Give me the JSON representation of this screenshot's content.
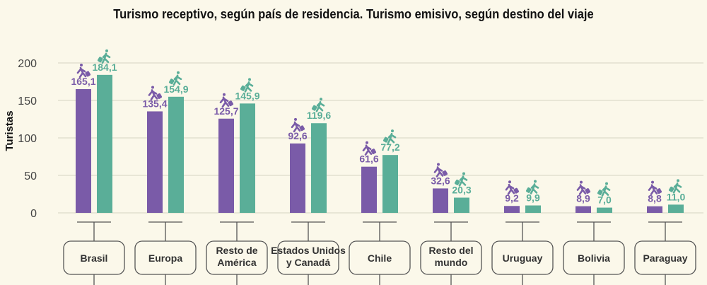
{
  "chart_data": {
    "type": "bar",
    "title": "Turismo receptivo, según país de residencia. Turismo emisivo, según destino del viaje",
    "xlabel": "",
    "ylabel": "Turistas",
    "ylim": [
      0,
      200
    ],
    "yticks": [
      "0",
      "50",
      "100",
      "150",
      "200"
    ],
    "grid": true,
    "categories": [
      "Brasil",
      "Europa",
      "Resto de América",
      "Estados Unidos y Canadá",
      "Chile",
      "Resto del mundo",
      "Uruguay",
      "Bolivia",
      "Paraguay"
    ],
    "category_lines": [
      [
        "Brasil"
      ],
      [
        "Europa"
      ],
      [
        "Resto de",
        "América"
      ],
      [
        "Estados Unidos",
        "y Canadá"
      ],
      [
        "Chile"
      ],
      [
        "Resto del",
        "mundo"
      ],
      [
        "Uruguay"
      ],
      [
        "Bolivia"
      ],
      [
        "Paraguay"
      ]
    ],
    "series": [
      {
        "icon": "arriving-traveler-icon",
        "color": "#7a5ba8",
        "values": [
          165.1,
          135.4,
          125.7,
          92.6,
          61.6,
          32.6,
          9.2,
          8.9,
          8.8
        ],
        "labels": [
          "165,1",
          "135,4",
          "125,7",
          "92,6",
          "61,6",
          "32,6",
          "9,2",
          "8,9",
          "8,8"
        ]
      },
      {
        "icon": "departing-traveler-icon",
        "color": "#5aae98",
        "values": [
          184.1,
          154.9,
          145.9,
          119.6,
          77.2,
          20.3,
          9.9,
          7.0,
          11.0
        ],
        "labels": [
          "184,1",
          "154,9",
          "145,9",
          "119,6",
          "77,2",
          "20,3",
          "9,9",
          "7,0",
          "11,0"
        ]
      }
    ]
  }
}
